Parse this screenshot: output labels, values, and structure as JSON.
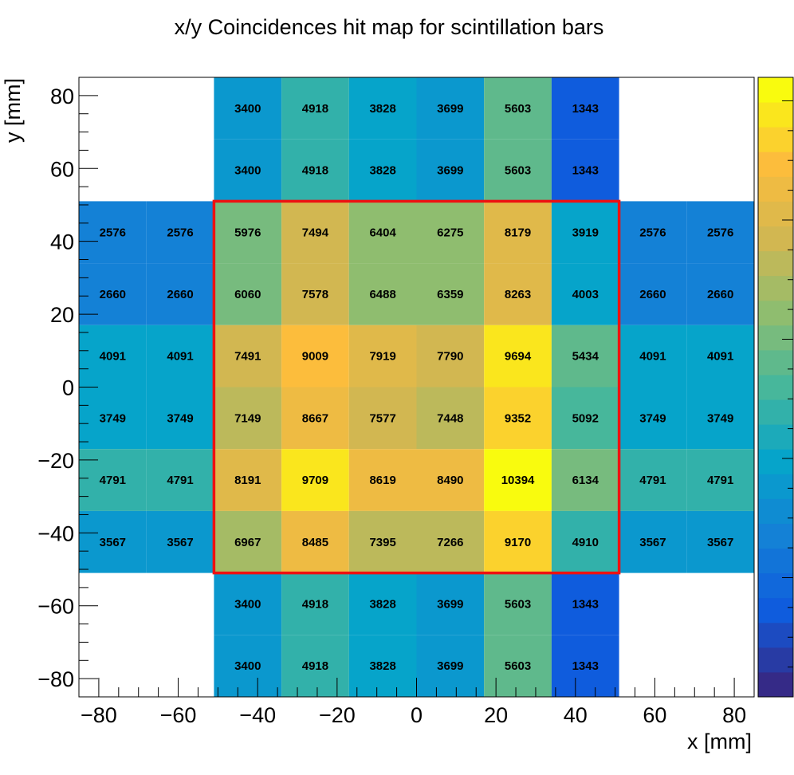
{
  "chart_data": {
    "type": "heatmap",
    "title": "x/y Coincidences hit map for scintillation bars",
    "xlabel": "x [mm]",
    "ylabel": "y [mm]",
    "xlim": [
      -85,
      85
    ],
    "ylim": [
      -85,
      85
    ],
    "xticks": [
      -80,
      -60,
      -40,
      -20,
      0,
      20,
      40,
      60,
      80
    ],
    "yticks": [
      -80,
      -60,
      -40,
      -20,
      0,
      20,
      40,
      60,
      80
    ],
    "x_edges": [
      -85,
      -68,
      -51,
      -34,
      -17,
      0,
      17,
      34,
      51,
      68,
      85
    ],
    "y_edges": [
      -85,
      -68,
      -51,
      -34,
      -17,
      0,
      17,
      34,
      51,
      68,
      85
    ],
    "rows": [
      [
        null,
        null,
        3400,
        4918,
        3828,
        3699,
        5603,
        1343,
        null,
        null
      ],
      [
        null,
        null,
        3400,
        4918,
        3828,
        3699,
        5603,
        1343,
        null,
        null
      ],
      [
        2576,
        2576,
        5976,
        7494,
        6404,
        6275,
        8179,
        3919,
        2576,
        2576
      ],
      [
        2660,
        2660,
        6060,
        7578,
        6488,
        6359,
        8263,
        4003,
        2660,
        2660
      ],
      [
        4091,
        4091,
        7491,
        9009,
        7919,
        7790,
        9694,
        5434,
        4091,
        4091
      ],
      [
        3749,
        3749,
        7149,
        8667,
        7577,
        7448,
        9352,
        5092,
        3749,
        3749
      ],
      [
        4791,
        4791,
        8191,
        9709,
        8619,
        8490,
        10394,
        6134,
        4791,
        4791
      ],
      [
        3567,
        3567,
        6967,
        8485,
        7395,
        7266,
        9170,
        4910,
        3567,
        3567
      ],
      [
        null,
        null,
        3400,
        4918,
        3828,
        3699,
        5603,
        1343,
        null,
        null
      ],
      [
        null,
        null,
        3400,
        4918,
        3828,
        3699,
        5603,
        1343,
        null,
        null
      ]
    ],
    "zlim": [
      0,
      10394
    ],
    "colorscale": "parula",
    "colorbar": "right",
    "highlight_box": {
      "x": [
        -51,
        51
      ],
      "y": [
        -51,
        51
      ],
      "color": "#ee1111"
    },
    "grid": false
  }
}
